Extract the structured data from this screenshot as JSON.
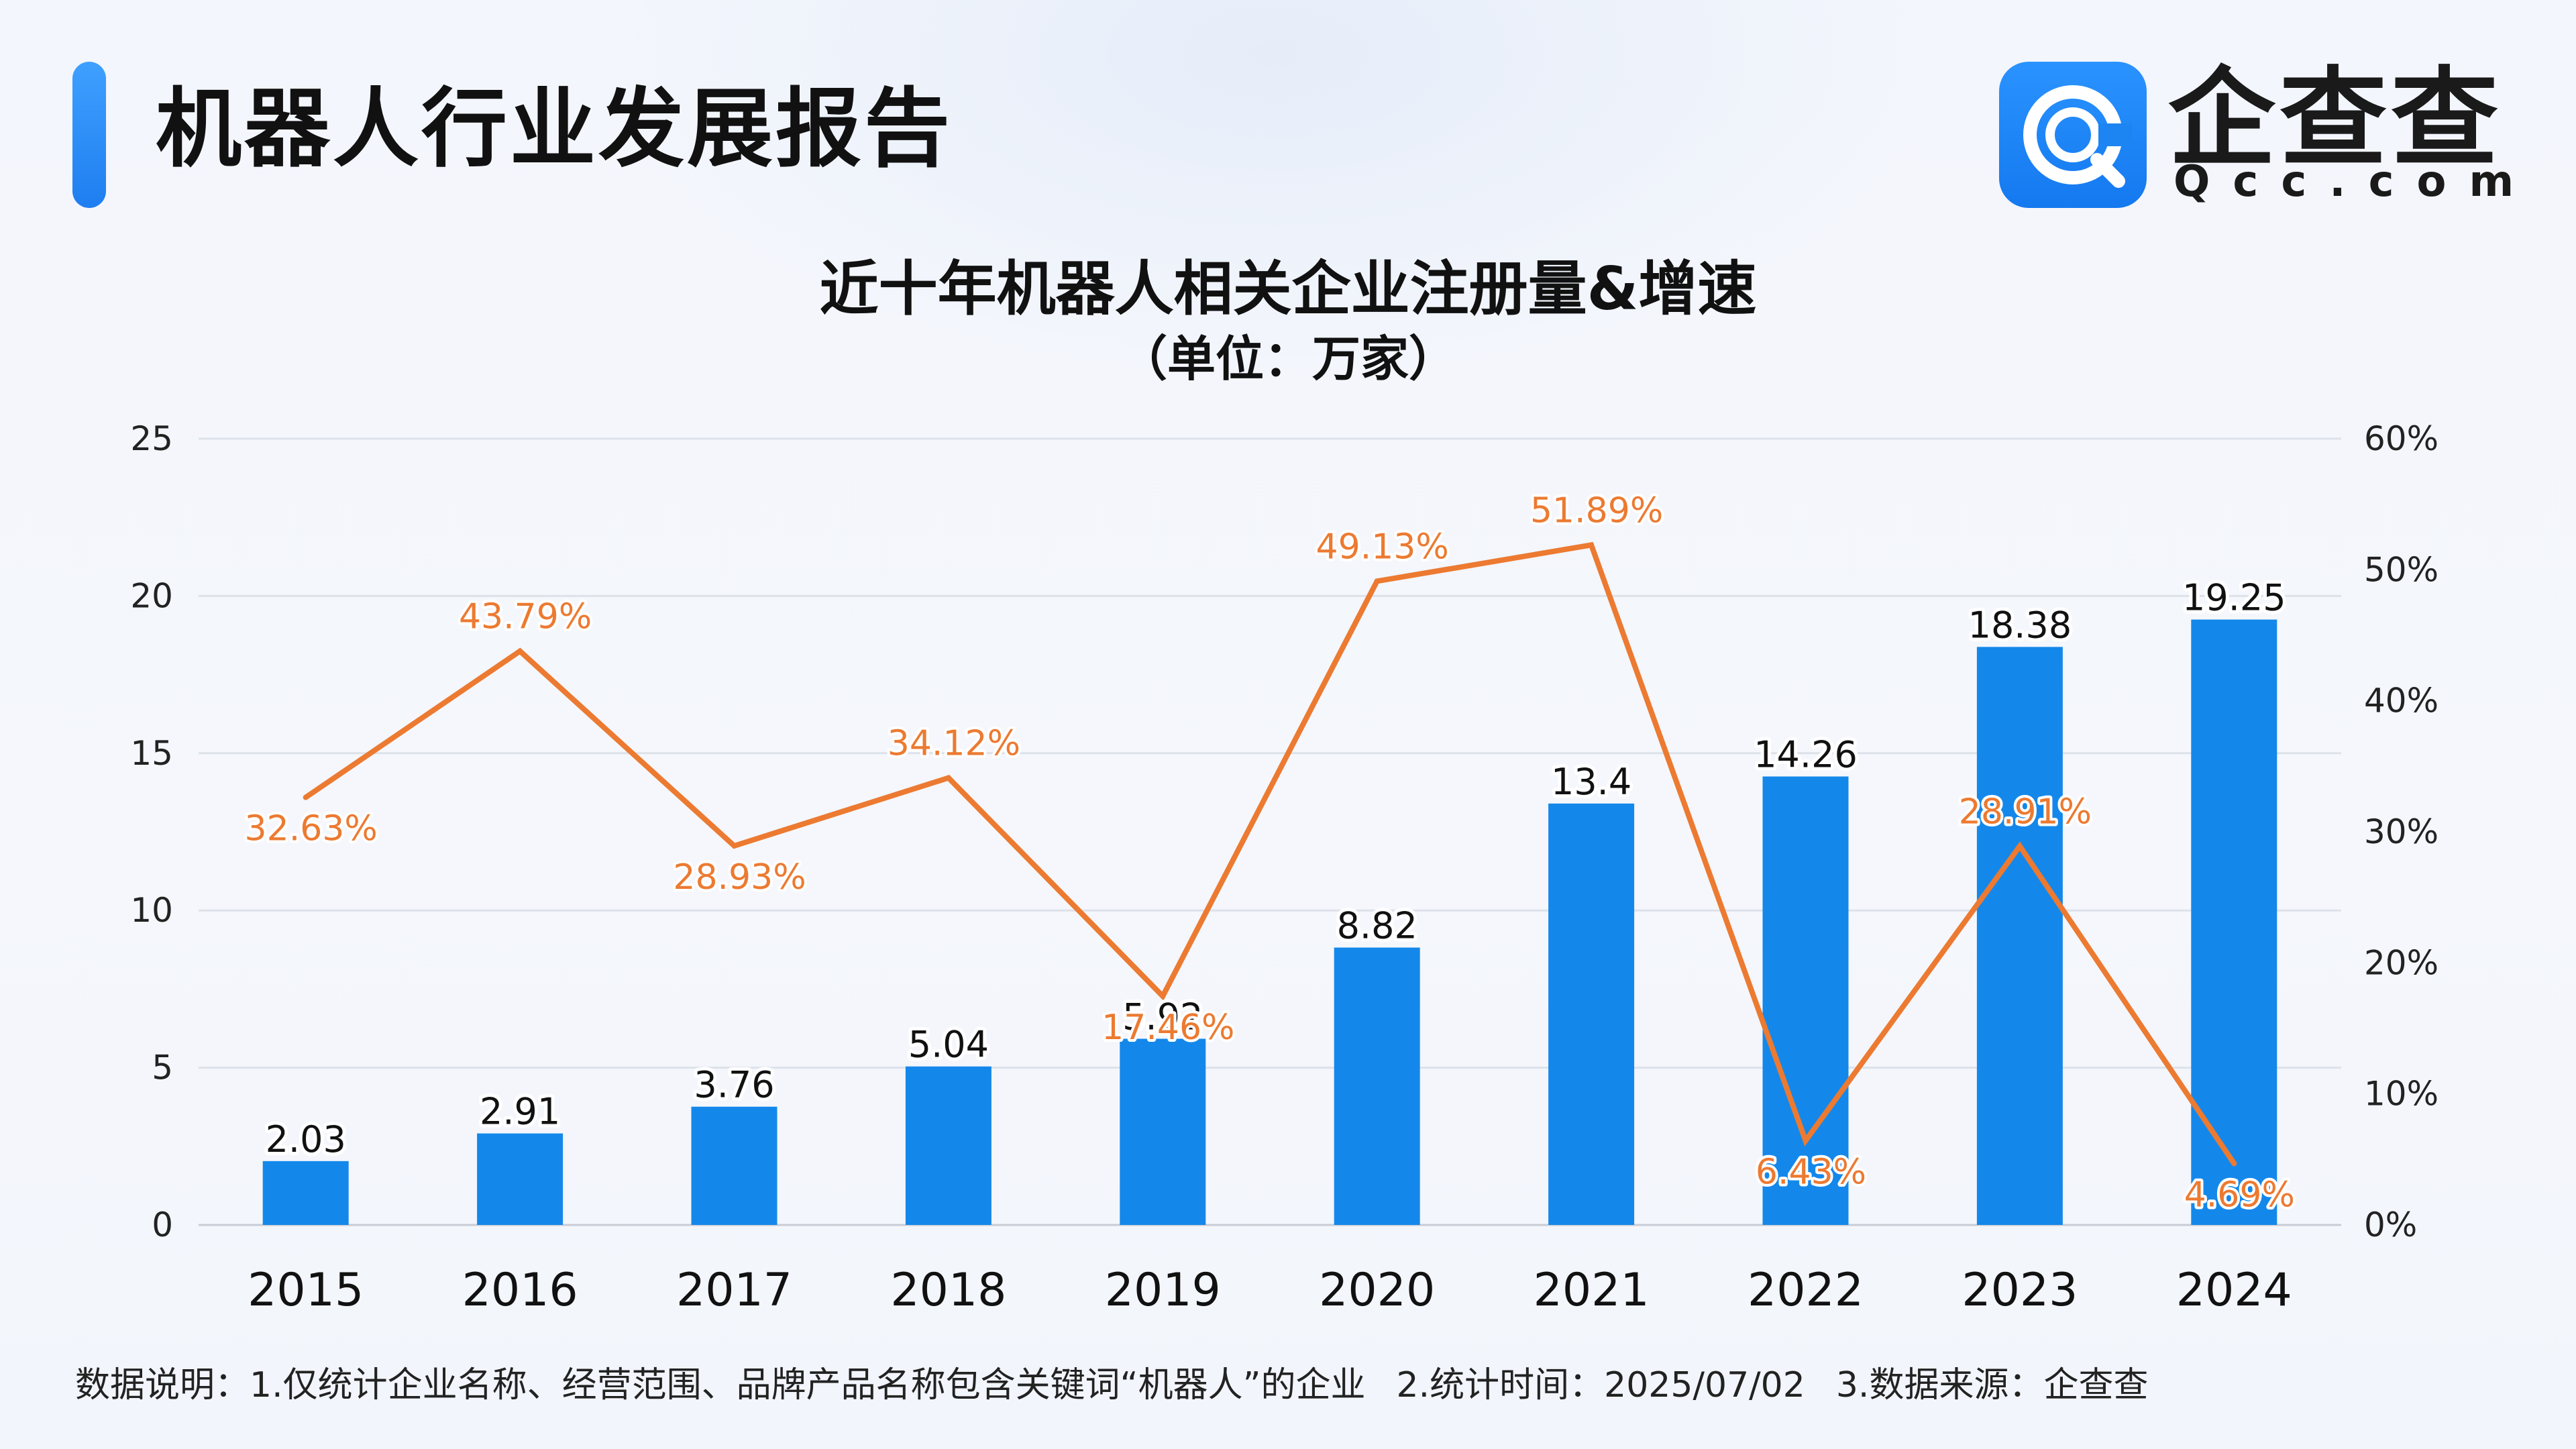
{
  "header": {
    "report_title": "机器人行业发展报告",
    "logo_name": "企查查",
    "logo_domain": "Qcc.com"
  },
  "colors": {
    "bar": "#1488ea",
    "line": "#ec7a31",
    "accent": "#2a8cf7"
  },
  "footnote": {
    "prefix": "数据说明：",
    "note1": "1.仅统计企业名称、经营范围、品牌产品名称包含关键词“机器人”的企业",
    "note2": "2.统计时间：2025/07/02",
    "note3": "3.数据来源：企查查"
  },
  "chart_data": {
    "type": "bar",
    "title": "近十年机器人相关企业注册量&增速",
    "subtitle": "（单位：万家）",
    "categories": [
      "2015",
      "2016",
      "2017",
      "2018",
      "2019",
      "2020",
      "2021",
      "2022",
      "2023",
      "2024"
    ],
    "series": [
      {
        "type": "bar",
        "axis": "left",
        "values": [
          2.03,
          2.91,
          3.76,
          5.04,
          5.92,
          8.82,
          13.4,
          14.26,
          18.38,
          19.25
        ],
        "labels": [
          "2.03",
          "2.91",
          "3.76",
          "5.04",
          "5.92",
          "8.82",
          "13.4",
          "14.26",
          "18.38",
          "19.25"
        ]
      },
      {
        "type": "line",
        "axis": "right",
        "values": [
          32.63,
          43.79,
          28.93,
          34.12,
          17.46,
          49.13,
          51.89,
          6.43,
          28.91,
          4.69
        ],
        "labels": [
          "32.63%",
          "43.79%",
          "28.93%",
          "34.12%",
          "17.46%",
          "49.13%",
          "51.89%",
          "6.43%",
          "28.91%",
          "4.69%"
        ]
      }
    ],
    "ylim": [
      0,
      25
    ],
    "yticks": [
      "0",
      "5",
      "10",
      "15",
      "20",
      "25"
    ],
    "y2lim": [
      0,
      60
    ],
    "y2ticks": [
      "0%",
      "10%",
      "20%",
      "30%",
      "40%",
      "50%",
      "60%"
    ],
    "grid": true,
    "legend": "none"
  }
}
